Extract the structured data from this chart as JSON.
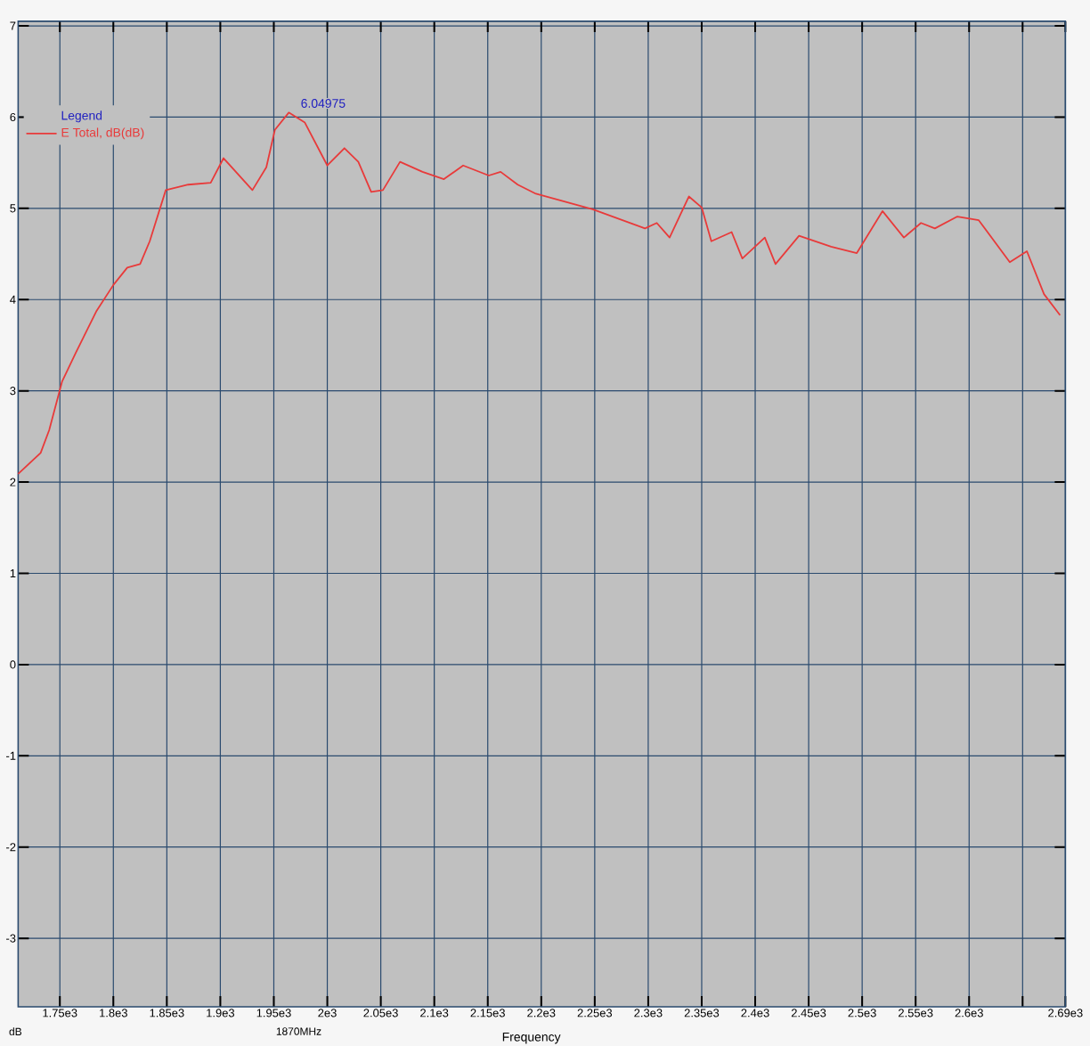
{
  "chart_data": {
    "type": "line",
    "xlabel": "Frequency",
    "legend_title": "Legend",
    "annotations": [
      {
        "text": "6.04975",
        "x": 1964,
        "y": 6.05
      },
      "1870MHz",
      "dB"
    ],
    "x": [
      1711,
      1732,
      1740,
      1752,
      1765,
      1784,
      1800,
      1813,
      1825,
      1834,
      1849,
      1870,
      1891,
      1903,
      1930,
      1943,
      1951,
      1964,
      1979,
      2000,
      2016,
      2029,
      2041,
      2052,
      2068,
      2089,
      2109,
      2127,
      2151,
      2162,
      2178,
      2195,
      2248,
      2297,
      2308,
      2320,
      2338,
      2350,
      2359,
      2378,
      2388,
      2409,
      2419,
      2441,
      2471,
      2495,
      2519,
      2539,
      2555,
      2568,
      2589,
      2609,
      2638,
      2654,
      2670,
      2685
    ],
    "series": [
      {
        "name": "E Total, dB(dB)",
        "color": "#e83a3a",
        "values": [
          2.09,
          2.32,
          2.57,
          3.1,
          3.42,
          3.87,
          4.16,
          4.35,
          4.39,
          4.64,
          5.2,
          5.26,
          5.28,
          5.55,
          5.2,
          5.45,
          5.86,
          6.05,
          5.94,
          5.47,
          5.66,
          5.51,
          5.18,
          5.2,
          5.51,
          5.4,
          5.32,
          5.47,
          5.36,
          5.4,
          5.26,
          5.16,
          4.99,
          4.78,
          4.84,
          4.68,
          5.13,
          5.01,
          4.64,
          4.74,
          4.45,
          4.68,
          4.39,
          4.7,
          4.58,
          4.51,
          4.97,
          4.68,
          4.84,
          4.78,
          4.91,
          4.87,
          4.41,
          4.53,
          4.06,
          3.83
        ]
      }
    ],
    "xlim": [
      1711,
      2690
    ],
    "ylim": [
      -3.75,
      7.05
    ],
    "xticks": [
      {
        "value": 1750,
        "label": "1.75e3"
      },
      {
        "value": 1800,
        "label": "1.8e3"
      },
      {
        "value": 1850,
        "label": "1.85e3"
      },
      {
        "value": 1900,
        "label": "1.9e3"
      },
      {
        "value": 1950,
        "label": "1.95e3"
      },
      {
        "value": 2000,
        "label": "2e3"
      },
      {
        "value": 2050,
        "label": "2.05e3"
      },
      {
        "value": 2100,
        "label": "2.1e3"
      },
      {
        "value": 2150,
        "label": "2.15e3"
      },
      {
        "value": 2200,
        "label": "2.2e3"
      },
      {
        "value": 2250,
        "label": "2.25e3"
      },
      {
        "value": 2300,
        "label": "2.3e3"
      },
      {
        "value": 2350,
        "label": "2.35e3"
      },
      {
        "value": 2400,
        "label": "2.4e3"
      },
      {
        "value": 2450,
        "label": "2.45e3"
      },
      {
        "value": 2500,
        "label": "2.5e3"
      },
      {
        "value": 2550,
        "label": "2.55e3"
      },
      {
        "value": 2600,
        "label": "2.6e3"
      },
      {
        "value": 2650,
        "label": null
      },
      {
        "value": 2690,
        "label": "2.69e3"
      }
    ],
    "yticks": [
      -3,
      -2,
      -1,
      0,
      1,
      2,
      3,
      4,
      5,
      6,
      7
    ],
    "grid": true,
    "legend": "top left",
    "marker": "none",
    "line_style": "solid"
  }
}
